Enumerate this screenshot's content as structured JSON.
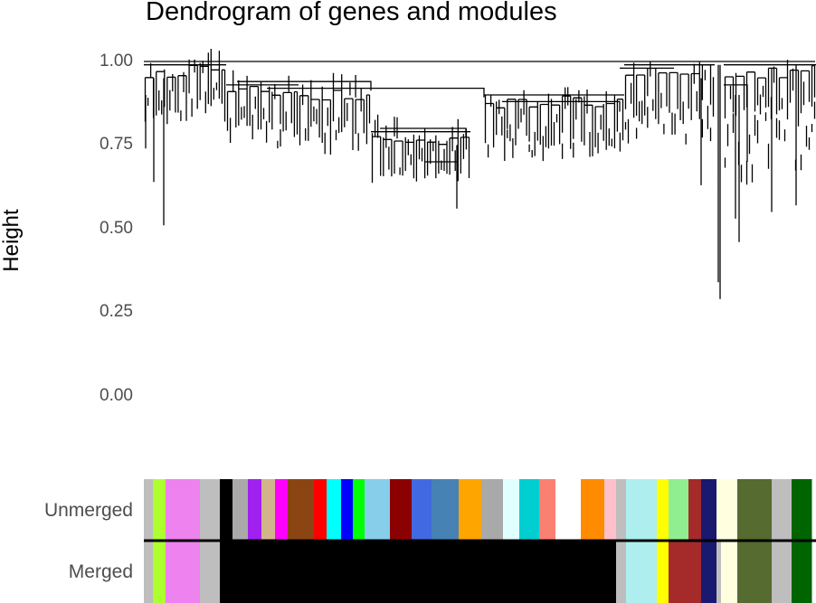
{
  "chart_data": {
    "type": "dendrogram",
    "title": "Dendrogram of genes and modules",
    "ylabel": "Height",
    "ylim": [
      0,
      1
    ],
    "yticks": [
      {
        "value": 1.0,
        "label": "1.00"
      },
      {
        "value": 0.75,
        "label": "0.75"
      },
      {
        "value": 0.5,
        "label": "0.50"
      },
      {
        "value": 0.25,
        "label": "0.25"
      },
      {
        "value": 0.0,
        "label": "0.00"
      }
    ],
    "row_labels": [
      "Unmerged",
      "Merged"
    ],
    "unmerged_colors": [
      "#bebebe",
      "#adff2f",
      "#ee82ee",
      "#bebebe",
      "#000000",
      "#a9a9a9",
      "#a020f0",
      "#d2b48c",
      "#ff00ff",
      "#8b4513",
      "#ff0000",
      "#00ffff",
      "#0000ff",
      "#00ff00",
      "#87ceeb",
      "#8b0000",
      "#4169e1",
      "#4682b4",
      "#ffa500",
      "#a9a9a9",
      "#e0ffff",
      "#00ced1",
      "#fa8072",
      "#ffffff",
      "#ff8c00",
      "#ffc0cb",
      "#bebebe",
      "#afeeee",
      "#ffff00",
      "#90ee90",
      "#a52a2a",
      "#191970",
      "#ffffe0",
      "#556b2f",
      "#bebebe",
      "#006400"
    ],
    "unmerged_widths": [
      10,
      14,
      38,
      22,
      14,
      17,
      15,
      15,
      14,
      29,
      14,
      16,
      13,
      13,
      28,
      24,
      22,
      30,
      25,
      24,
      18,
      22,
      18,
      28,
      26,
      13,
      11,
      34,
      13,
      22,
      14,
      17,
      23,
      38,
      22,
      22
    ],
    "merged_colors": [
      "#bebebe",
      "#adff2f",
      "#ee82ee",
      "#bebebe",
      "#000000",
      "#bebebe",
      "#afeeee",
      "#ffff00",
      "#a52a2a",
      "#191970",
      "#bebebe",
      "#ffffe0",
      "#556b2f",
      "#bebebe",
      "#006400"
    ],
    "merged_widths": [
      10,
      14,
      38,
      22,
      438,
      11,
      34,
      13,
      36,
      17,
      5,
      18,
      38,
      22,
      22
    ]
  }
}
